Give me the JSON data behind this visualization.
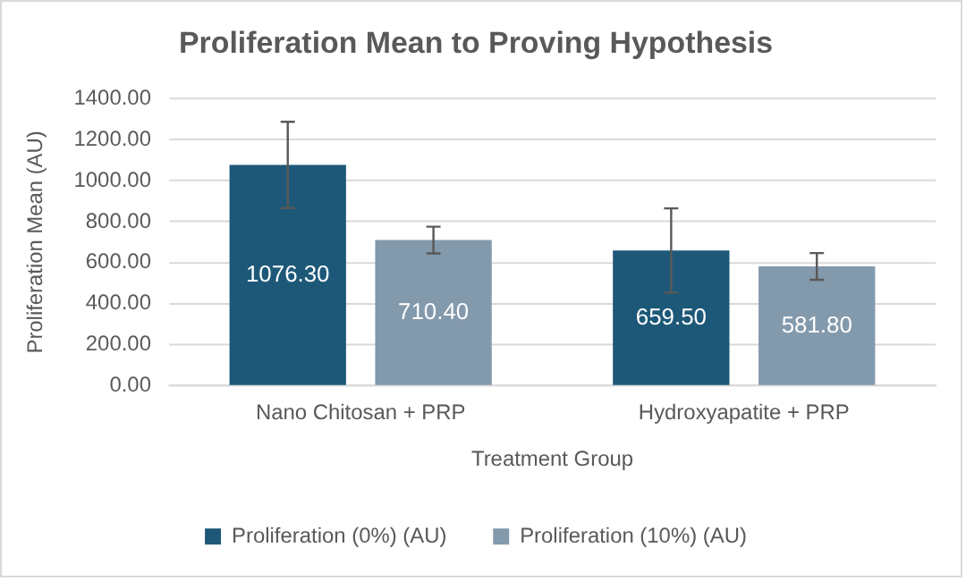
{
  "chart_data": {
    "type": "bar",
    "title": "Proliferation Mean to Proving Hypothesis",
    "xlabel": "Treatment Group",
    "ylabel": "Proliferation Mean (AU)",
    "categories": [
      "Nano Chitosan + PRP",
      "Hydroxyapatite + PRP"
    ],
    "series": [
      {
        "name": "Proliferation (0%) (AU)",
        "color": "#1d5878",
        "values": [
          1076.3,
          659.5
        ],
        "value_labels": [
          "1076.30",
          "659.50"
        ],
        "errors": [
          210,
          205
        ]
      },
      {
        "name": "Proliferation (10%) (AU)",
        "color": "#8399ac",
        "values": [
          710.4,
          581.8
        ],
        "value_labels": [
          "710.40",
          "581.80"
        ],
        "errors": [
          65,
          65
        ]
      }
    ],
    "ylim": [
      0,
      1400
    ],
    "yticks": [
      {
        "value": 0,
        "label": "0.00"
      },
      {
        "value": 200,
        "label": "200.00"
      },
      {
        "value": 400,
        "label": "400.00"
      },
      {
        "value": 600,
        "label": "600.00"
      },
      {
        "value": 800,
        "label": "800.00"
      },
      {
        "value": 1000,
        "label": "1000.00"
      },
      {
        "value": 1200,
        "label": "1200.00"
      },
      {
        "value": 1400,
        "label": "1400.00"
      }
    ],
    "grid": "y",
    "legend": "bottom"
  }
}
